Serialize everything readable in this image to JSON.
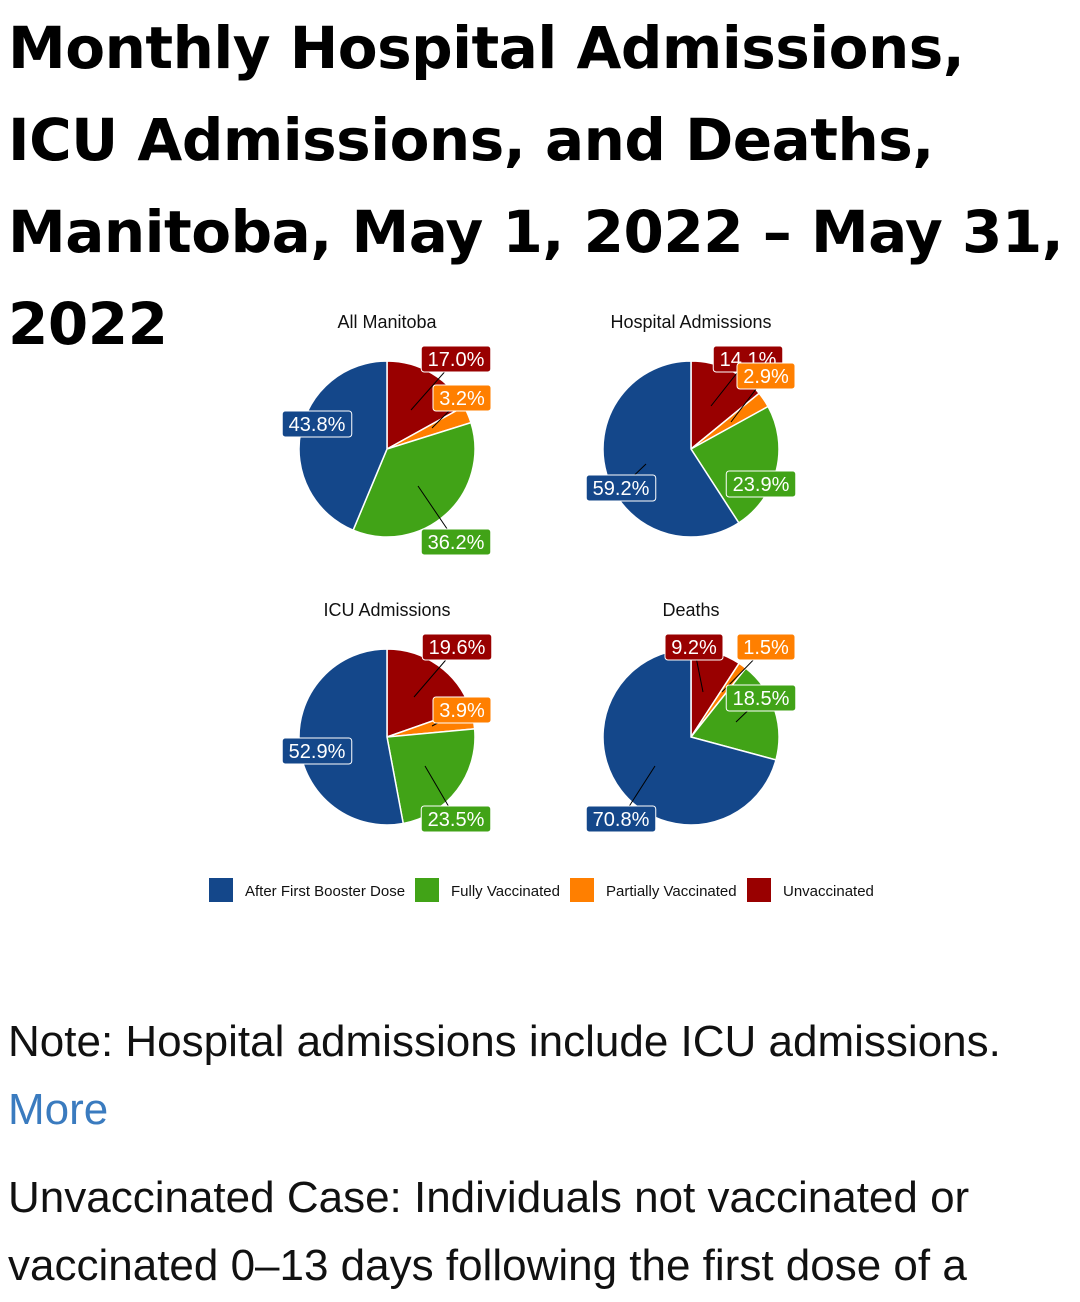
{
  "page": {
    "title": "Monthly Hospital Admissions, ICU Admissions, and Deaths, Manitoba, May 1, 2022 – May 31, 2022",
    "note1_text": "Note: Hospital admissions include ICU admissions.",
    "more_link": "More",
    "note2_text": "Unvaccinated Case: Individuals not vaccinated or vaccinated 0–13 days following the first dose of a"
  },
  "colors": {
    "After First Booster Dose": "#14478a",
    "Fully Vaccinated": "#41a317",
    "Partially Vaccinated": "#ff7f00",
    "Unvaccinated": "#990000"
  },
  "chart_data": [
    {
      "type": "pie",
      "title": "All Manitoba",
      "slices": [
        {
          "name": "Unvaccinated",
          "value": 17.0,
          "label": "17.0%"
        },
        {
          "name": "Partially Vaccinated",
          "value": 3.2,
          "label": "3.2%"
        },
        {
          "name": "Fully Vaccinated",
          "value": 36.2,
          "label": "36.2%"
        },
        {
          "name": "After First Booster Dose",
          "value": 43.8,
          "label": "43.8%"
        }
      ]
    },
    {
      "type": "pie",
      "title": "Hospital Admissions",
      "slices": [
        {
          "name": "Unvaccinated",
          "value": 14.1,
          "label": "14.1%"
        },
        {
          "name": "Partially Vaccinated",
          "value": 2.9,
          "label": "2.9%"
        },
        {
          "name": "Fully Vaccinated",
          "value": 23.9,
          "label": "23.9%"
        },
        {
          "name": "After First Booster Dose",
          "value": 59.2,
          "label": "59.2%"
        }
      ]
    },
    {
      "type": "pie",
      "title": "ICU Admissions",
      "slices": [
        {
          "name": "Unvaccinated",
          "value": 19.6,
          "label": "19.6%"
        },
        {
          "name": "Partially Vaccinated",
          "value": 3.9,
          "label": "3.9%"
        },
        {
          "name": "Fully Vaccinated",
          "value": 23.5,
          "label": "23.5%"
        },
        {
          "name": "After First Booster Dose",
          "value": 52.9,
          "label": "52.9%"
        }
      ]
    },
    {
      "type": "pie",
      "title": "Deaths",
      "slices": [
        {
          "name": "Unvaccinated",
          "value": 9.2,
          "label": "9.2%"
        },
        {
          "name": "Partially Vaccinated",
          "value": 1.5,
          "label": "1.5%"
        },
        {
          "name": "Fully Vaccinated",
          "value": 18.5,
          "label": "18.5%"
        },
        {
          "name": "After First Booster Dose",
          "value": 70.8,
          "label": "70.8%"
        }
      ]
    }
  ],
  "legend": {
    "placement": "bottom",
    "items": [
      "After First Booster Dose",
      "Fully Vaccinated",
      "Partially Vaccinated",
      "Unvaccinated"
    ]
  }
}
